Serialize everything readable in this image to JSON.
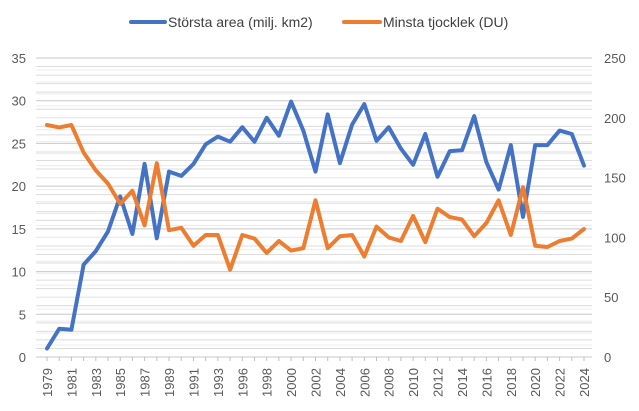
{
  "chart_data": {
    "type": "line",
    "title": "",
    "x": [
      "1979",
      "1980",
      "1981",
      "1982",
      "1983",
      "1984",
      "1985",
      "1986",
      "1987",
      "1988",
      "1989",
      "1990",
      "1991",
      "1992",
      "1993",
      "1994",
      "1996",
      "1997",
      "1998",
      "1999",
      "2000",
      "2001",
      "2002",
      "2003",
      "2004",
      "2005",
      "2006",
      "2007",
      "2008",
      "2009",
      "2010",
      "2011",
      "2012",
      "2013",
      "2014",
      "2015",
      "2016",
      "2017",
      "2018",
      "2019",
      "2020",
      "2021",
      "2022",
      "2023",
      "2024"
    ],
    "x_tick_labels": [
      "1979",
      "1981",
      "1983",
      "1985",
      "1987",
      "1989",
      "1991",
      "1993",
      "1996",
      "1998",
      "2000",
      "2002",
      "2004",
      "2006",
      "2008",
      "2010",
      "2012",
      "2014",
      "2016",
      "2018",
      "2020",
      "2022",
      "2024"
    ],
    "y_left": {
      "lim": [
        0,
        35
      ],
      "ticks": [
        0,
        5,
        10,
        15,
        20,
        25,
        30,
        35
      ]
    },
    "y_right": {
      "lim": [
        0,
        250
      ],
      "ticks": [
        0,
        50,
        100,
        150,
        200,
        250
      ]
    },
    "grid": true,
    "legend_position": "top",
    "series": [
      {
        "name": "Största area (milj. km2)",
        "axis": "left",
        "color": "#4472C4",
        "values": [
          1.0,
          3.3,
          3.2,
          10.8,
          12.4,
          14.7,
          18.8,
          14.4,
          22.6,
          13.9,
          21.7,
          21.2,
          22.6,
          24.9,
          25.8,
          25.2,
          26.9,
          25.2,
          28.0,
          25.9,
          29.9,
          26.5,
          21.7,
          28.4,
          22.7,
          27.2,
          29.6,
          25.3,
          26.9,
          24.4,
          22.5,
          26.1,
          21.1,
          24.1,
          24.2,
          28.2,
          22.8,
          19.6,
          24.8,
          16.4,
          24.8,
          24.8,
          26.5,
          26.1,
          22.4
        ]
      },
      {
        "name": "Minsta tjocklek (DU)",
        "axis": "right",
        "color": "#ED7D31",
        "values": [
          194,
          192,
          194,
          171,
          156,
          145,
          128,
          139,
          110,
          162,
          106,
          108,
          93,
          102,
          102,
          73,
          102,
          99,
          87,
          97,
          89,
          91,
          131,
          91,
          101,
          102,
          84,
          109,
          100,
          97,
          118,
          96,
          124,
          117,
          115,
          101,
          112,
          131,
          102,
          142,
          93,
          92,
          97,
          99,
          107
        ]
      }
    ]
  }
}
